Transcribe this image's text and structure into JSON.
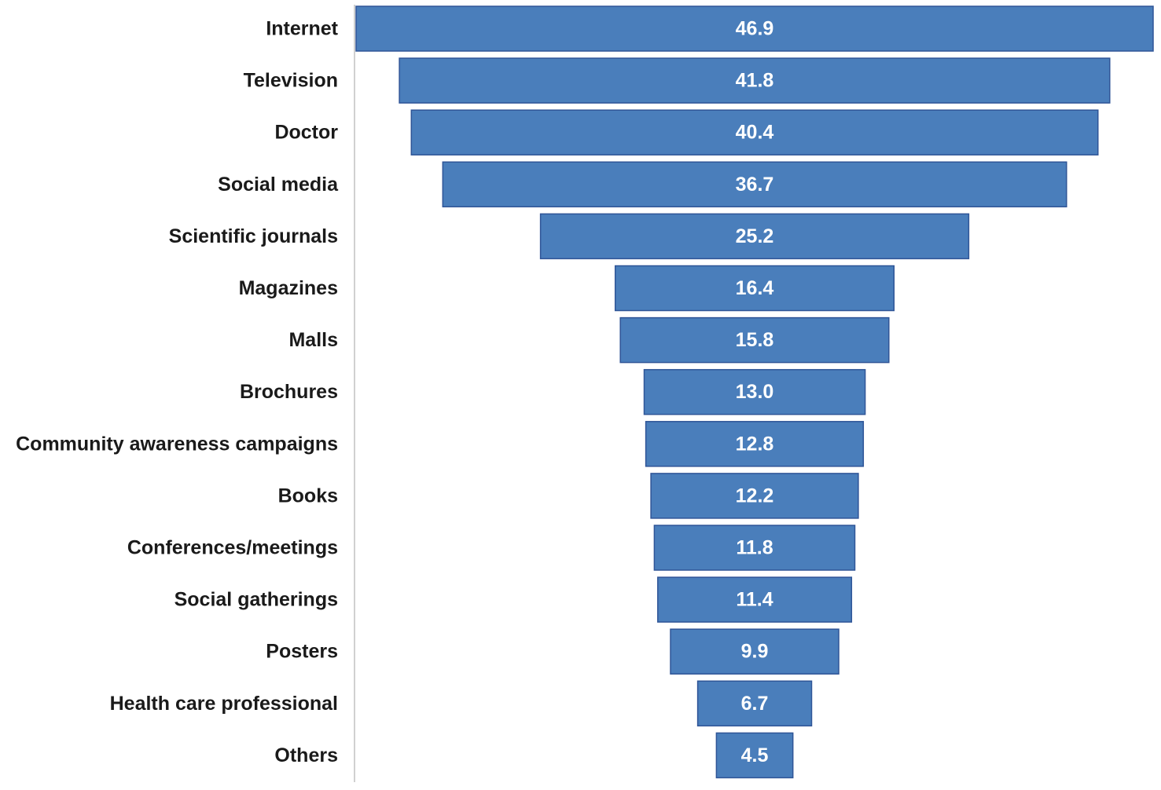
{
  "chart_data": {
    "type": "bar",
    "orientation": "horizontal-funnel",
    "title": "",
    "xlabel": "",
    "ylabel": "",
    "grid": false,
    "legend": "none",
    "bar_color": "#4a7ebb",
    "categories": [
      "Internet",
      "Television",
      "Doctor",
      "Social media",
      "Scientific journals",
      "Magazines",
      "Malls",
      "Brochures",
      "Community awareness campaigns",
      "Books",
      "Conferences/meetings",
      "Social gatherings",
      "Posters",
      "Health care professional",
      "Others"
    ],
    "values": [
      46.9,
      41.8,
      40.4,
      36.7,
      25.2,
      16.4,
      15.8,
      13.0,
      12.8,
      12.2,
      11.8,
      11.4,
      9.9,
      6.7,
      4.5
    ],
    "value_labels": [
      "46.9",
      "41.8",
      "40.4",
      "36.7",
      "25.2",
      "16.4",
      "15.8",
      "13.0",
      "12.8",
      "12.2",
      "11.8",
      "11.4",
      "9.9",
      "6.7",
      "4.5"
    ]
  }
}
